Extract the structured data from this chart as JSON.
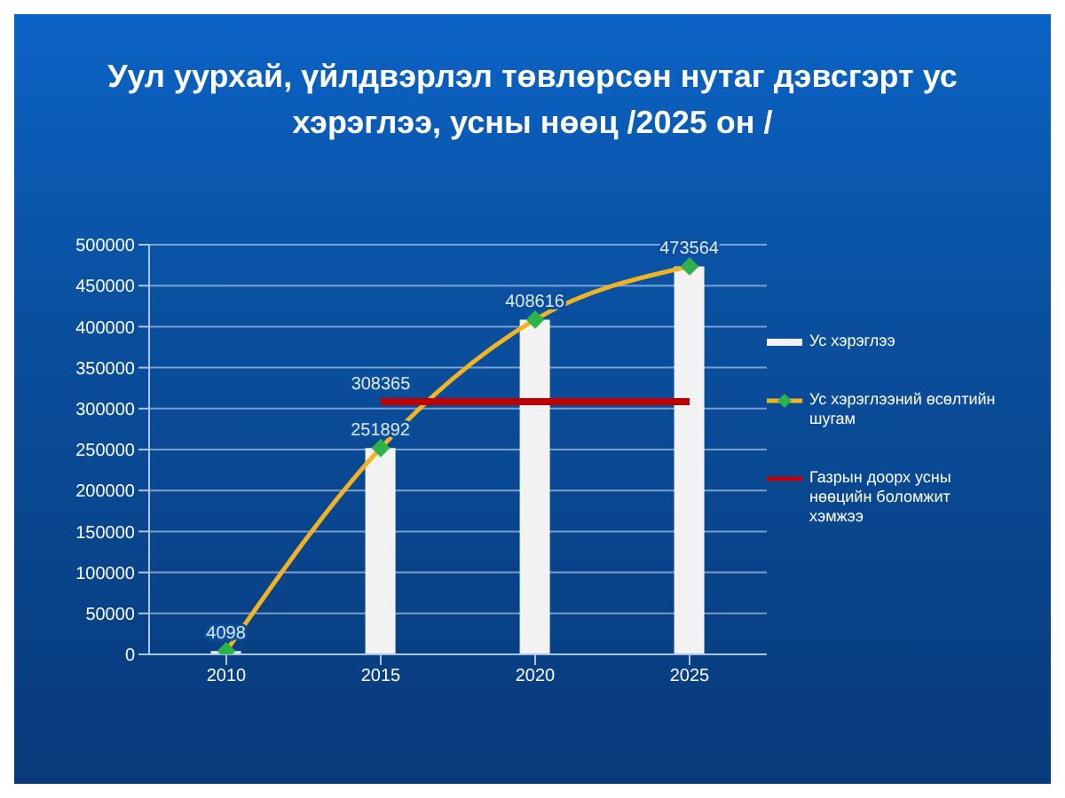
{
  "chart_data": {
    "type": "bar",
    "title": "Уул уурхай, үйлдвэрлэл төвлөрсөн нутаг дэвсгэрт ус хэрэглээ, усны нөөц /2025 он /",
    "categories": [
      "2010",
      "2015",
      "2020",
      "2025"
    ],
    "series": [
      {
        "name": "Ус хэрэглээ",
        "color": "#f2f2f2",
        "values": [
          4098,
          251892,
          408616,
          473564
        ],
        "value_labels": [
          "4098",
          "251892",
          "408616",
          "473564"
        ]
      },
      {
        "name": "Ус хэрэглээний өсөлтийн шугам",
        "type": "line",
        "color": "#f0b323",
        "values": [
          4098,
          251892,
          408616,
          473564
        ],
        "marker": "diamond"
      },
      {
        "name": "Газрын доорх усны нөөцийн боломжит хэмжээ",
        "type": "line",
        "color": "#c00000",
        "values": [
          null,
          308365,
          308365,
          308365
        ],
        "marker": "none",
        "value_labels": [
          null,
          "308365",
          null,
          null
        ]
      }
    ],
    "ylim": [
      0,
      500000
    ],
    "yticks": [
      0,
      50000,
      100000,
      150000,
      200000,
      250000,
      300000,
      350000,
      400000,
      450000,
      500000
    ],
    "grid": "y",
    "legend": "right"
  }
}
